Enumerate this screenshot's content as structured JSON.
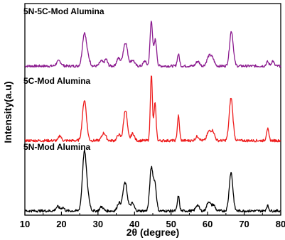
{
  "chart_data": {
    "type": "line",
    "title": "",
    "xlabel": "2θ (degree)",
    "ylabel": "Intensity(a.u)",
    "xlim": [
      10,
      80
    ],
    "xticks": [
      10,
      20,
      30,
      40,
      50,
      60,
      70,
      80
    ],
    "grid": false,
    "legend": "none",
    "series": [
      {
        "name": "5N-5C-Mod Alumina",
        "color": "#8B1A8F",
        "peaks": [
          {
            "x": 19.3,
            "y": 0.12,
            "w": 0.6
          },
          {
            "x": 26.3,
            "y": 0.78,
            "w": 0.55
          },
          {
            "x": 27.4,
            "y": 0.15,
            "w": 0.45
          },
          {
            "x": 30.9,
            "y": 0.12,
            "w": 0.45
          },
          {
            "x": 32.2,
            "y": 0.16,
            "w": 0.4
          },
          {
            "x": 35.6,
            "y": 0.18,
            "w": 0.5
          },
          {
            "x": 37.5,
            "y": 0.55,
            "w": 0.6
          },
          {
            "x": 39.5,
            "y": 0.14,
            "w": 0.5
          },
          {
            "x": 42.8,
            "y": 0.12,
            "w": 0.4
          },
          {
            "x": 44.6,
            "y": 1.05,
            "w": 0.35
          },
          {
            "x": 45.7,
            "y": 0.62,
            "w": 0.35
          },
          {
            "x": 52.0,
            "y": 0.28,
            "w": 0.3
          },
          {
            "x": 57.3,
            "y": 0.11,
            "w": 0.5
          },
          {
            "x": 60.4,
            "y": 0.23,
            "w": 0.6
          },
          {
            "x": 61.4,
            "y": 0.14,
            "w": 0.5
          },
          {
            "x": 66.5,
            "y": 0.82,
            "w": 0.5
          },
          {
            "x": 76.4,
            "y": 0.1,
            "w": 0.35
          },
          {
            "x": 77.8,
            "y": 0.12,
            "w": 0.35
          }
        ]
      },
      {
        "name": "5C-Mod Alumina",
        "color": "#EE1C1C",
        "peaks": [
          {
            "x": 19.6,
            "y": 0.12,
            "w": 0.35
          },
          {
            "x": 26.3,
            "y": 0.95,
            "w": 0.55
          },
          {
            "x": 31.6,
            "y": 0.18,
            "w": 0.55
          },
          {
            "x": 35.7,
            "y": 0.14,
            "w": 0.45
          },
          {
            "x": 37.5,
            "y": 0.72,
            "w": 0.5
          },
          {
            "x": 39.5,
            "y": 0.17,
            "w": 0.45
          },
          {
            "x": 44.6,
            "y": 1.55,
            "w": 0.28
          },
          {
            "x": 45.6,
            "y": 0.88,
            "w": 0.3
          },
          {
            "x": 52.0,
            "y": 0.58,
            "w": 0.28
          },
          {
            "x": 57.2,
            "y": 0.1,
            "w": 0.5
          },
          {
            "x": 60.3,
            "y": 0.2,
            "w": 0.5
          },
          {
            "x": 61.4,
            "y": 0.22,
            "w": 0.5
          },
          {
            "x": 66.4,
            "y": 1.0,
            "w": 0.5
          },
          {
            "x": 76.4,
            "y": 0.28,
            "w": 0.32
          }
        ]
      },
      {
        "name": "5N-Mod Alumina",
        "color": "#000000",
        "peaks": [
          {
            "x": 19.0,
            "y": 0.1,
            "w": 0.5
          },
          {
            "x": 20.4,
            "y": 0.08,
            "w": 0.4
          },
          {
            "x": 26.3,
            "y": 1.4,
            "w": 0.55
          },
          {
            "x": 27.4,
            "y": 0.22,
            "w": 0.45
          },
          {
            "x": 31.0,
            "y": 0.1,
            "w": 0.45
          },
          {
            "x": 35.7,
            "y": 0.18,
            "w": 0.45
          },
          {
            "x": 37.4,
            "y": 0.66,
            "w": 0.6
          },
          {
            "x": 39.4,
            "y": 0.18,
            "w": 0.5
          },
          {
            "x": 44.6,
            "y": 1.0,
            "w": 0.45
          },
          {
            "x": 45.6,
            "y": 0.6,
            "w": 0.4
          },
          {
            "x": 52.0,
            "y": 0.35,
            "w": 0.28
          },
          {
            "x": 57.2,
            "y": 0.14,
            "w": 0.45
          },
          {
            "x": 60.3,
            "y": 0.22,
            "w": 0.5
          },
          {
            "x": 61.6,
            "y": 0.14,
            "w": 0.45
          },
          {
            "x": 66.4,
            "y": 0.9,
            "w": 0.5
          },
          {
            "x": 76.4,
            "y": 0.12,
            "w": 0.32
          }
        ]
      }
    ]
  }
}
